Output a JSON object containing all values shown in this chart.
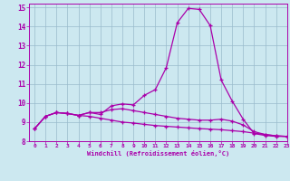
{
  "xlabel": "Windchill (Refroidissement éolien,°C)",
  "xlim": [
    -0.5,
    23
  ],
  "ylim": [
    8,
    15.2
  ],
  "yticks": [
    8,
    9,
    10,
    11,
    12,
    13,
    14,
    15
  ],
  "xticks": [
    0,
    1,
    2,
    3,
    4,
    5,
    6,
    7,
    8,
    9,
    10,
    11,
    12,
    13,
    14,
    15,
    16,
    17,
    18,
    19,
    20,
    21,
    22,
    23
  ],
  "bg_color": "#cce8f0",
  "line_color": "#aa00aa",
  "grid_color": "#99bbcc",
  "line1_x": [
    0,
    1,
    2,
    3,
    4,
    5,
    6,
    7,
    8,
    9,
    10,
    11,
    12,
    13,
    14,
    15,
    16,
    17,
    18,
    19,
    20,
    21,
    22,
    23
  ],
  "line1_y": [
    8.65,
    9.3,
    9.5,
    9.45,
    9.35,
    9.5,
    9.4,
    9.85,
    9.95,
    9.9,
    10.4,
    10.7,
    11.85,
    14.2,
    14.95,
    14.9,
    14.05,
    11.2,
    10.1,
    9.15,
    8.4,
    8.3,
    8.25,
    8.25
  ],
  "line2_x": [
    0,
    1,
    2,
    3,
    4,
    5,
    6,
    7,
    8,
    9,
    10,
    11,
    12,
    13,
    14,
    15,
    16,
    17,
    18,
    19,
    20,
    21,
    22,
    23
  ],
  "line2_y": [
    8.65,
    9.3,
    9.5,
    9.45,
    9.35,
    9.3,
    9.2,
    9.1,
    9.0,
    8.95,
    8.88,
    8.82,
    8.78,
    8.74,
    8.7,
    8.66,
    8.63,
    8.6,
    8.55,
    8.5,
    8.42,
    8.35,
    8.28,
    8.25
  ],
  "line3_x": [
    0,
    1,
    2,
    3,
    4,
    5,
    6,
    7,
    8,
    9,
    10,
    11,
    12,
    13,
    14,
    15,
    16,
    17,
    18,
    19,
    20,
    21,
    22,
    23
  ],
  "line3_y": [
    8.65,
    9.3,
    9.5,
    9.45,
    9.35,
    9.5,
    9.5,
    9.65,
    9.7,
    9.6,
    9.5,
    9.4,
    9.3,
    9.2,
    9.15,
    9.1,
    9.1,
    9.15,
    9.05,
    8.85,
    8.5,
    8.35,
    8.28,
    8.25
  ]
}
